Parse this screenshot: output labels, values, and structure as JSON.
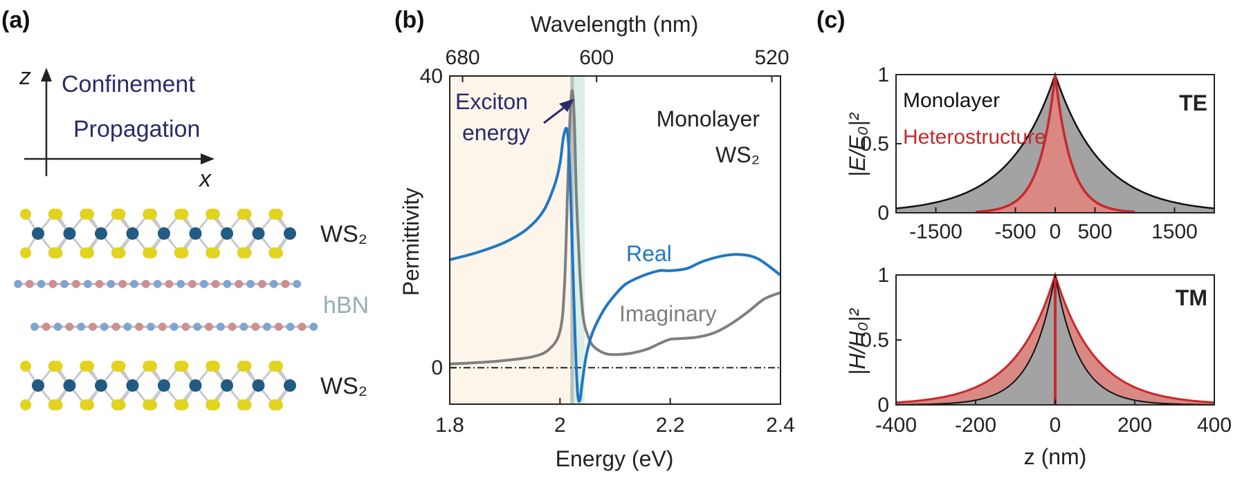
{
  "figure": {
    "panel_labels": [
      "(a)",
      "(b)",
      "(c)"
    ],
    "colors": {
      "real": "#1f77c4",
      "imaginary": "#7f7f7f",
      "monolayer_fill": "#a3a3a3",
      "heterostructure": "#c8282c",
      "heterostructure_fill": "#d98883",
      "confinement_text": "#2b2a6b",
      "hbn_text": "#93aeb7",
      "w_atom": "#215a82",
      "s_atom": "#e2d31f",
      "b_atom": "#79a7d8",
      "n_atom": "#d98b8b",
      "shade_left": "#fdf5ea",
      "shade_band": "#dcefe6"
    }
  },
  "panel_a": {
    "axis_z": "z",
    "axis_x": "x",
    "confinement": "Confinement",
    "propagation": "Propagation",
    "layers": [
      "WS₂",
      "hBN",
      "WS₂"
    ]
  },
  "chart_data": [
    {
      "type": "line",
      "panel": "(b)",
      "xlabel": "Energy (eV)",
      "ylabel": "Permittivity",
      "top_xlabel": "Wavelength (nm)",
      "xlim": [
        1.8,
        2.4
      ],
      "ylim": [
        -5,
        40
      ],
      "x_ticks": [
        "1.8",
        "2",
        "2.2",
        "2.4"
      ],
      "y_ticks": [
        "0",
        "40"
      ],
      "top_ticks": [
        "680",
        "600",
        "520"
      ],
      "exciton_energy_eV": 2.022,
      "annotations": [
        "Exciton",
        "energy",
        "Monolayer",
        "WS₂"
      ],
      "zero_line": true,
      "series": [
        {
          "name": "Real",
          "x": [
            1.8,
            1.85,
            1.9,
            1.94,
            1.97,
            1.99,
            2.0,
            2.006,
            2.012,
            2.016,
            2.02,
            2.024,
            2.028,
            2.032,
            2.036,
            2.04,
            2.045,
            2.05,
            2.06,
            2.08,
            2.1,
            2.12,
            2.15,
            2.18,
            2.2,
            2.23,
            2.26,
            2.3,
            2.33,
            2.36,
            2.4
          ],
          "values": [
            14.8,
            15.8,
            17.2,
            19.0,
            21.5,
            25.0,
            28.0,
            31.5,
            32.8,
            30.0,
            22.0,
            12.0,
            3.0,
            -3.5,
            -4.5,
            -2.2,
            0.5,
            2.5,
            5.0,
            8.0,
            10.0,
            11.5,
            12.6,
            13.3,
            13.3,
            13.6,
            14.6,
            15.4,
            15.5,
            14.9,
            12.7
          ]
        },
        {
          "name": "Imaginary",
          "x": [
            1.8,
            1.85,
            1.9,
            1.95,
            1.98,
            2.0,
            2.008,
            2.014,
            2.018,
            2.022,
            2.026,
            2.03,
            2.036,
            2.042,
            2.05,
            2.06,
            2.08,
            2.1,
            2.13,
            2.16,
            2.18,
            2.2,
            2.22,
            2.25,
            2.28,
            2.31,
            2.34,
            2.37,
            2.4
          ],
          "values": [
            0.5,
            0.7,
            1.0,
            1.5,
            2.5,
            5.0,
            11.0,
            25.0,
            34.0,
            38.0,
            34.0,
            23.0,
            13.0,
            7.0,
            4.5,
            3.0,
            2.0,
            1.8,
            2.0,
            2.6,
            3.3,
            3.9,
            4.0,
            4.2,
            4.8,
            6.0,
            7.6,
            9.4,
            10.3
          ]
        }
      ]
    },
    {
      "type": "area",
      "panel": "(c) top",
      "mode": "TE",
      "ylabel": "|E/E₀|²",
      "xlim": [
        -2000,
        2000
      ],
      "ylim": [
        0,
        1
      ],
      "x_ticks": [
        "-1500",
        "-500",
        "0",
        "500",
        "1500"
      ],
      "y_ticks": [
        "0",
        "0.5",
        "1"
      ],
      "legend": [
        "Monolayer",
        "Heterostructure"
      ],
      "decay_length_nm": {
        "Monolayer": 580,
        "Heterostructure": 200
      },
      "series": [
        {
          "name": "Monolayer",
          "x": [
            -2000,
            -1500,
            -1000,
            -500,
            -250,
            0,
            250,
            500,
            1000,
            1500,
            2000
          ],
          "values": [
            0.03,
            0.08,
            0.18,
            0.42,
            0.65,
            1.0,
            0.65,
            0.42,
            0.18,
            0.08,
            0.03
          ]
        },
        {
          "name": "Heterostructure",
          "x": [
            -1000,
            -750,
            -500,
            -250,
            -100,
            0,
            100,
            250,
            500,
            750,
            1000
          ],
          "values": [
            0.01,
            0.02,
            0.08,
            0.29,
            0.61,
            1.0,
            0.61,
            0.29,
            0.08,
            0.02,
            0.01
          ]
        }
      ]
    },
    {
      "type": "area",
      "panel": "(c) bottom",
      "mode": "TM",
      "ylabel": "|H/H₀|²",
      "xlabel": "z (nm)",
      "xlim": [
        -400,
        400
      ],
      "ylim": [
        0,
        1
      ],
      "x_ticks": [
        "-400",
        "-200",
        "0",
        "200",
        "400"
      ],
      "y_ticks": [
        "0",
        "0.5",
        "1"
      ],
      "decay_length_nm": {
        "Monolayer": 60,
        "Heterostructure": 100
      },
      "series": [
        {
          "name": "Monolayer",
          "x": [
            -400,
            -300,
            -200,
            -100,
            -50,
            0,
            50,
            100,
            200,
            300,
            400
          ],
          "values": [
            0.0,
            0.01,
            0.04,
            0.19,
            0.43,
            1.0,
            0.43,
            0.19,
            0.04,
            0.01,
            0.0
          ]
        },
        {
          "name": "Heterostructure",
          "x": [
            -400,
            -300,
            -200,
            -100,
            -50,
            0,
            50,
            100,
            200,
            300,
            400
          ],
          "values": [
            0.02,
            0.05,
            0.14,
            0.37,
            0.61,
            1.0,
            0.61,
            0.37,
            0.14,
            0.05,
            0.02
          ]
        }
      ]
    }
  ]
}
